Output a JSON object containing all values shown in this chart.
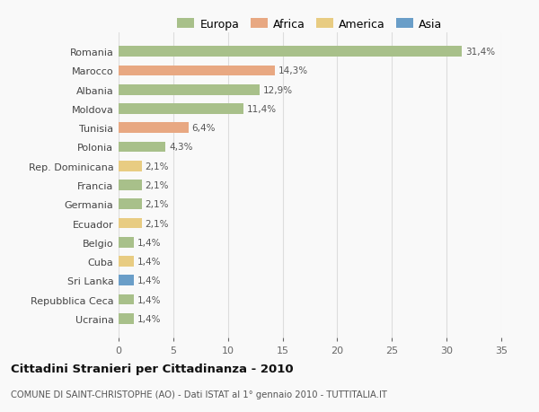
{
  "countries": [
    "Romania",
    "Marocco",
    "Albania",
    "Moldova",
    "Tunisia",
    "Polonia",
    "Rep. Dominicana",
    "Francia",
    "Germania",
    "Ecuador",
    "Belgio",
    "Cuba",
    "Sri Lanka",
    "Repubblica Ceca",
    "Ucraina"
  ],
  "values": [
    31.4,
    14.3,
    12.9,
    11.4,
    6.4,
    4.3,
    2.1,
    2.1,
    2.1,
    2.1,
    1.4,
    1.4,
    1.4,
    1.4,
    1.4
  ],
  "labels": [
    "31,4%",
    "14,3%",
    "12,9%",
    "11,4%",
    "6,4%",
    "4,3%",
    "2,1%",
    "2,1%",
    "2,1%",
    "2,1%",
    "1,4%",
    "1,4%",
    "1,4%",
    "1,4%",
    "1,4%"
  ],
  "continents": [
    "Europa",
    "Africa",
    "Europa",
    "Europa",
    "Africa",
    "Europa",
    "America",
    "Europa",
    "Europa",
    "America",
    "Europa",
    "America",
    "Asia",
    "Europa",
    "Europa"
  ],
  "colors": {
    "Europa": "#a8c08a",
    "Africa": "#e8a882",
    "America": "#e8cc82",
    "Asia": "#6a9ec8"
  },
  "title": "Cittadini Stranieri per Cittadinanza - 2010",
  "subtitle": "COMUNE DI SAINT-CHRISTOPHE (AO) - Dati ISTAT al 1° gennaio 2010 - TUTTITALIA.IT",
  "xlim": [
    0,
    35
  ],
  "xticks": [
    0,
    5,
    10,
    15,
    20,
    25,
    30,
    35
  ],
  "background_color": "#f9f9f9",
  "grid_color": "#dddddd",
  "bar_height": 0.55,
  "legend_order": [
    "Europa",
    "Africa",
    "America",
    "Asia"
  ]
}
